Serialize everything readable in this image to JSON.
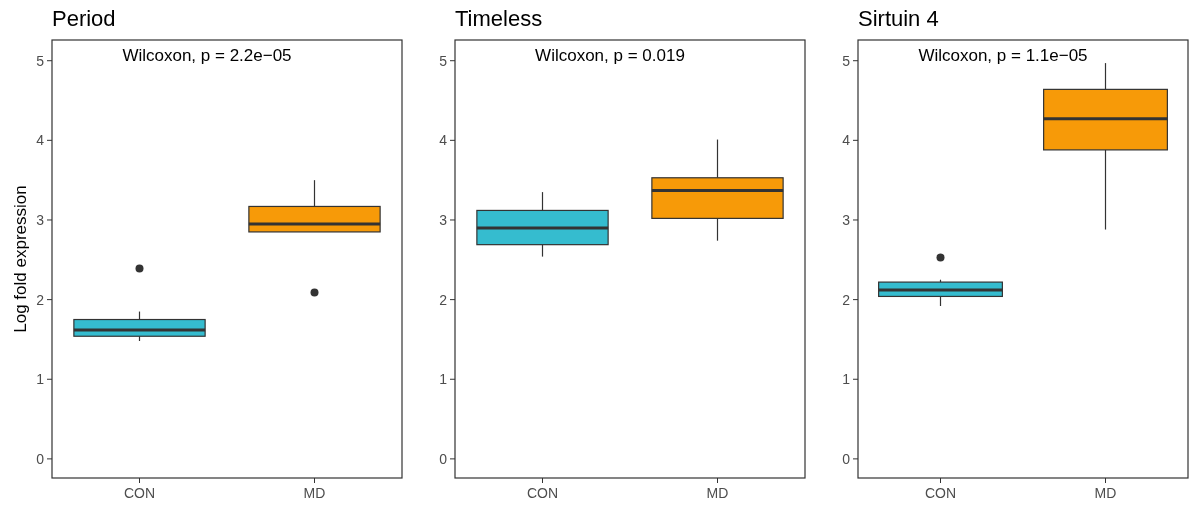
{
  "chart_data": [
    {
      "type": "box",
      "title": "Period",
      "ylabel": "Log fold expression",
      "categories": [
        "CON",
        "MD"
      ],
      "colors": [
        "#35bccf",
        "#f79a08"
      ],
      "boxes": [
        {
          "low": 1.48,
          "q1": 1.54,
          "median": 1.62,
          "q3": 1.75,
          "high": 1.85,
          "outliers": [
            2.39
          ]
        },
        {
          "low": 2.85,
          "q1": 2.85,
          "median": 2.95,
          "q3": 3.17,
          "high": 3.5,
          "outliers": [
            2.09
          ]
        }
      ],
      "ylim": [
        -0.24,
        5.26
      ],
      "yticks": [
        0,
        1,
        2,
        3,
        4,
        5
      ],
      "grid": false,
      "annotations": [
        "Wilcoxon, p = 2.2e−05"
      ]
    },
    {
      "type": "box",
      "title": "Timeless",
      "categories": [
        "CON",
        "MD"
      ],
      "colors": [
        "#35bccf",
        "#f79a08"
      ],
      "boxes": [
        {
          "low": 2.54,
          "q1": 2.69,
          "median": 2.9,
          "q3": 3.12,
          "high": 3.35
        },
        {
          "low": 2.74,
          "q1": 3.02,
          "median": 3.37,
          "q3": 3.53,
          "high": 4.01
        }
      ],
      "ylim": [
        -0.24,
        5.26
      ],
      "yticks": [
        0,
        1,
        2,
        3,
        4,
        5
      ],
      "grid": false,
      "annotations": [
        "Wilcoxon, p = 0.019"
      ]
    },
    {
      "type": "box",
      "title": "Sirtuin 4",
      "categories": [
        "CON",
        "MD"
      ],
      "colors": [
        "#35bccf",
        "#f79a08"
      ],
      "boxes": [
        {
          "low": 1.92,
          "q1": 2.04,
          "median": 2.12,
          "q3": 2.22,
          "high": 2.25,
          "outliers": [
            2.53
          ]
        },
        {
          "low": 2.88,
          "q1": 3.88,
          "median": 4.27,
          "q3": 4.64,
          "high": 4.97
        }
      ],
      "ylim": [
        -0.24,
        5.26
      ],
      "yticks": [
        0,
        1,
        2,
        3,
        4,
        5
      ],
      "grid": false,
      "annotations": [
        "Wilcoxon, p = 1.1e−05"
      ]
    }
  ]
}
